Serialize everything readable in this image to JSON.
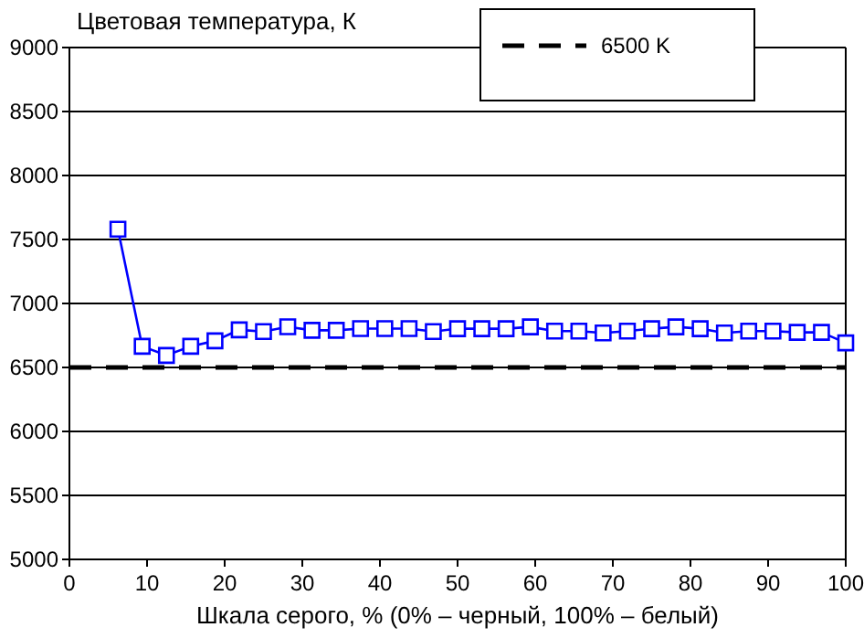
{
  "chart_data": {
    "type": "line",
    "ylabel": "Цветовая температура, К",
    "xlabel": "Шкала серого, % (0% – черный, 100% – белый)",
    "xlim": [
      0,
      100
    ],
    "xticks": [
      0,
      10,
      20,
      30,
      40,
      50,
      60,
      70,
      80,
      90,
      100
    ],
    "ylim": [
      5000,
      9000
    ],
    "yticks": [
      5000,
      5500,
      6000,
      6500,
      7000,
      7500,
      8000,
      8500,
      9000
    ],
    "grid": "y",
    "legend": "top right",
    "marker": "square",
    "line_style": "solid",
    "series": [
      {
        "color": "#0000ff",
        "x": [
          6.25,
          9.375,
          12.5,
          15.625,
          18.75,
          21.875,
          25,
          28.125,
          31.25,
          34.375,
          37.5,
          40.625,
          43.75,
          46.875,
          50,
          53.125,
          56.25,
          59.375,
          62.5,
          65.625,
          68.75,
          71.875,
          75,
          78.125,
          81.25,
          84.375,
          87.5,
          90.625,
          93.75,
          96.875,
          100
        ],
        "values": [
          7580,
          6665,
          6594,
          6665,
          6708,
          6794,
          6780,
          6818,
          6790,
          6790,
          6804,
          6804,
          6804,
          6780,
          6803,
          6803,
          6803,
          6817,
          6784,
          6784,
          6770,
          6784,
          6803,
          6817,
          6803,
          6770,
          6784,
          6784,
          6774,
          6774,
          6692
        ]
      }
    ],
    "ref_lines": [
      {
        "axis": "y",
        "value": 6500,
        "label": "6500 K",
        "color": "#000000",
        "line_style": "dashed"
      }
    ]
  }
}
